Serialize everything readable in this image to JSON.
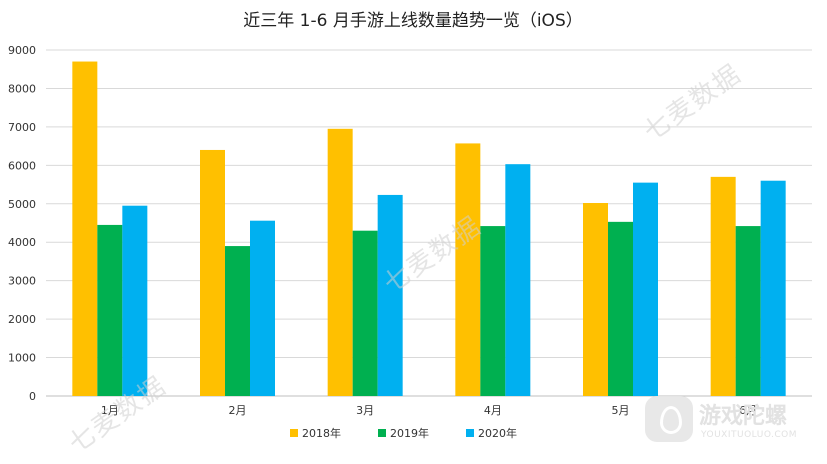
{
  "chart_data": {
    "type": "bar",
    "title": "近三年 1-6 月手游上线数量趋势一览（iOS）",
    "categories": [
      "1月",
      "2月",
      "3月",
      "4月",
      "5月",
      "6月"
    ],
    "series": [
      {
        "name": "2018年",
        "color": "#FFC000",
        "values": [
          8700,
          6400,
          6950,
          6570,
          5020,
          5700
        ]
      },
      {
        "name": "2019年",
        "color": "#00B050",
        "values": [
          4450,
          3900,
          4300,
          4420,
          4530,
          4420
        ]
      },
      {
        "name": "2020年",
        "color": "#00B0F0",
        "values": [
          4950,
          4560,
          5230,
          6030,
          5550,
          5600
        ]
      }
    ],
    "ylim": [
      0,
      9000
    ],
    "yticks": [
      0,
      1000,
      2000,
      3000,
      4000,
      5000,
      6000,
      7000,
      8000,
      9000
    ],
    "grid": true,
    "legend_position": "bottom",
    "xlabel": "",
    "ylabel": ""
  },
  "watermark_text": "七麦数据",
  "brand": {
    "name": "游戏陀螺",
    "url": "YOUXITUOLUO.COM"
  }
}
